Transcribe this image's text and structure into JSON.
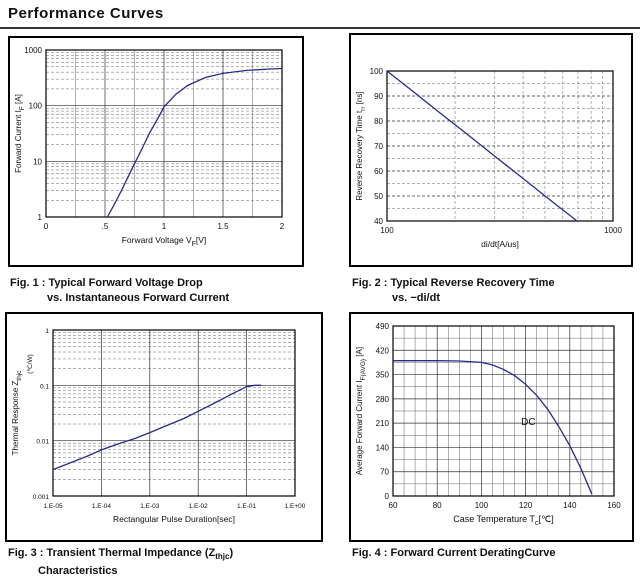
{
  "page": {
    "title": "Performance Curves"
  },
  "figures": [
    {
      "caption_line1": [
        {
          "t": "Fig. 1 : Typical Forward Voltage Drop"
        }
      ],
      "caption_line2": [
        {
          "t": "vs. Instantaneous Forward Current"
        }
      ]
    },
    {
      "caption_line1": [
        {
          "t": "Fig. 2 : Typical Reverse Recovery Time"
        }
      ],
      "caption_line2": [
        {
          "t": "vs. −di/dt"
        }
      ]
    },
    {
      "caption_line1": [
        {
          "t": "Fig. 3 : Transient Thermal Impedance ("
        },
        {
          "t": "Z"
        },
        {
          "t": "thjc",
          "sub": true
        },
        {
          "t": ")"
        }
      ],
      "caption_line2": [
        {
          "t": "Characteristics"
        }
      ]
    },
    {
      "caption_line1": [
        {
          "t": "Fig. 4 : Forward Current DeratingCurve"
        }
      ],
      "caption_line2": []
    }
  ],
  "chart_data": [
    {
      "id": "fig1",
      "type": "line",
      "title": "Typical Forward Voltage Drop vs. Instantaneous Forward Current",
      "x_scale": "linear",
      "y_scale": "log",
      "xlim": [
        0,
        2
      ],
      "ylim": [
        1,
        1000
      ],
      "x_ticks": [
        0,
        0.5,
        1,
        1.5,
        2
      ],
      "x_tick_labels": [
        "0",
        ".5",
        "1",
        "1.5",
        "2"
      ],
      "y_ticks": [
        1,
        10,
        100,
        1000
      ],
      "y_tick_labels": [
        "1",
        "10",
        "100",
        "1000"
      ],
      "x_minor": "solid",
      "x_minor_step": 0.25,
      "y_minor": "dashed",
      "x_major": "solid",
      "y_major": "solid",
      "xlabel_parts": [
        {
          "t": "Forward Voltage V"
        },
        {
          "t": "F",
          "sub": true
        },
        {
          "t": "[V]"
        }
      ],
      "ylabel_parts": [
        {
          "t": "Forward Current I"
        },
        {
          "t": "F",
          "sub": true
        },
        {
          "t": " [A]"
        }
      ],
      "line_color": "#2b2b8c",
      "series": [
        {
          "name": "forward-voltage-drop",
          "x": [
            0.52,
            0.58,
            0.64,
            0.7,
            0.76,
            0.82,
            0.88,
            0.95,
            1.0,
            1.1,
            1.2,
            1.35,
            1.5,
            1.7,
            1.9,
            2.0
          ],
          "y": [
            1,
            1.7,
            3,
            5.5,
            10,
            18,
            33,
            60,
            95,
            160,
            230,
            320,
            380,
            430,
            455,
            465
          ]
        }
      ]
    },
    {
      "id": "fig2",
      "type": "line",
      "title": "Typical Reverse Recovery Time vs. -di/dt",
      "x_scale": "log",
      "y_scale": "linear",
      "xlim": [
        100,
        1000
      ],
      "ylim": [
        40,
        100
      ],
      "x_ticks": [
        100,
        1000
      ],
      "x_tick_labels": [
        "100",
        "1000"
      ],
      "y_ticks": [
        40,
        50,
        60,
        70,
        80,
        90,
        100
      ],
      "y_tick_labels": [
        "40",
        "50",
        "60",
        "70",
        "80",
        "90",
        "100"
      ],
      "x_minor": "dashed",
      "y_minor": "dashed",
      "y_minor_step": 5,
      "x_major": "solid",
      "y_major": "dashed",
      "xlabel_parts": [
        {
          "t": "di/dt[A/us]"
        }
      ],
      "ylabel_parts": [
        {
          "t": "Reverse Recovery Time t"
        },
        {
          "t": "rr",
          "sub": true
        },
        {
          "t": " [ns]"
        }
      ],
      "line_color": "#2b2b8c",
      "series": [
        {
          "name": "reverse-recovery-time",
          "x": [
            100,
            130,
            170,
            220,
            300,
            400,
            520,
            700
          ],
          "y": [
            100,
            91.9,
            83.5,
            75.6,
            65.9,
            57.0,
            48.8,
            39.7
          ]
        }
      ]
    },
    {
      "id": "fig3",
      "type": "line",
      "title": "Transient Thermal Impedance (Zthjc) Characteristics",
      "x_scale": "log",
      "y_scale": "log",
      "xlim": [
        1e-05,
        1
      ],
      "ylim": [
        0.001,
        1
      ],
      "x_ticks": [
        1e-05,
        0.0001,
        0.001,
        0.01,
        0.1,
        1
      ],
      "x_tick_labels": [
        "1.E-05",
        "1.E-04",
        "1.E-03",
        "1.E-02",
        "1.E-01",
        "1.E+00"
      ],
      "y_ticks": [
        0.001,
        0.01,
        0.1,
        1
      ],
      "y_tick_labels": [
        "0.001",
        "0.01",
        "0.1",
        "1"
      ],
      "x_minor": "none",
      "y_minor": "dashed",
      "x_major": "solid",
      "y_major": "solid",
      "tick_font_size": 6.5,
      "xlabel_parts": [
        {
          "t": "Rectangular Pulse Duration[sec]"
        }
      ],
      "ylabel_parts": [
        {
          "t": "Thermal Response Z"
        },
        {
          "t": "thjc",
          "sub": true
        }
      ],
      "ylabel2_parts": [
        {
          "t": "(℃/W)"
        }
      ],
      "line_color": "#2b2b8c",
      "series": [
        {
          "name": "transient-thermal-impedance",
          "x": [
            1e-05,
            2e-05,
            5e-05,
            0.0001,
            0.0002,
            0.0005,
            0.001,
            0.002,
            0.005,
            0.01,
            0.02,
            0.05,
            0.1,
            0.15,
            0.2
          ],
          "y": [
            0.003,
            0.0038,
            0.0052,
            0.0068,
            0.0085,
            0.011,
            0.014,
            0.018,
            0.025,
            0.034,
            0.046,
            0.07,
            0.095,
            0.1,
            0.1
          ]
        }
      ]
    },
    {
      "id": "fig4",
      "type": "line",
      "title": "Forward Current Derating Curve",
      "x_scale": "linear",
      "y_scale": "linear",
      "xlim": [
        60,
        160
      ],
      "ylim": [
        0,
        490
      ],
      "x_ticks": [
        60,
        80,
        100,
        120,
        140,
        160
      ],
      "x_tick_labels": [
        "60",
        "80",
        "100",
        "120",
        "140",
        "160"
      ],
      "y_ticks": [
        0,
        70,
        140,
        210,
        280,
        350,
        420,
        490
      ],
      "y_tick_labels": [
        "0",
        "70",
        "140",
        "210",
        "280",
        "350",
        "420",
        "490"
      ],
      "x_minor": "solid",
      "x_minor_step": 5,
      "y_minor": "solid",
      "y_minor_step": 35,
      "x_major": "solid",
      "y_major": "solid",
      "xlabel_font": 9,
      "xlabel_parts": [
        {
          "t": "Case Temperature  T"
        },
        {
          "t": "c",
          "sub": true
        },
        {
          "t": "[℃]"
        }
      ],
      "ylabel_parts": [
        {
          "t": "Average Forward Current I"
        },
        {
          "t": "F(AVG)",
          "sub": true
        },
        {
          "t": " [A]"
        }
      ],
      "annotations": [
        {
          "text": "DC",
          "x": 118,
          "y": 205
        }
      ],
      "line_color": "#2b2b8c",
      "series": [
        {
          "name": "derating-curve",
          "x": [
            60,
            70,
            80,
            90,
            100,
            105,
            110,
            115,
            120,
            125,
            130,
            135,
            140,
            145,
            150
          ],
          "y": [
            390,
            390,
            390,
            389,
            385,
            378,
            365,
            347,
            322,
            290,
            250,
            200,
            145,
            80,
            5
          ]
        }
      ]
    }
  ]
}
